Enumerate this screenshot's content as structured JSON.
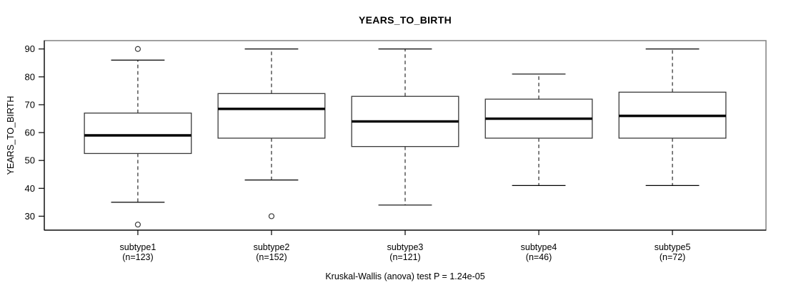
{
  "figure": {
    "title": "YEARS_TO_BIRTH",
    "ylabel": "YEARS_TO_BIRTH",
    "footnote": "Kruskal-Wallis (anova) test P = 1.24e-05"
  },
  "chart_data": {
    "type": "boxplot",
    "title": "YEARS_TO_BIRTH",
    "xlabel": "",
    "ylabel": "YEARS_TO_BIRTH",
    "footnote": "Kruskal-Wallis (anova) test P = 1.24e-05",
    "ylim": [
      25,
      93
    ],
    "yticks": [
      30,
      40,
      50,
      60,
      70,
      80,
      90
    ],
    "grid": false,
    "legend": "none",
    "categories": [
      "subtype1",
      "subtype2",
      "subtype3",
      "subtype4",
      "subtype5"
    ],
    "category_sublabels": [
      "(n=123)",
      "(n=152)",
      "(n=121)",
      "(n=46)",
      "(n=72)"
    ],
    "series": [
      {
        "name": "subtype1",
        "n": 123,
        "whisker_low": 35,
        "q1": 52.5,
        "median": 59,
        "q3": 67,
        "whisker_high": 86,
        "outliers": [
          90,
          27
        ]
      },
      {
        "name": "subtype2",
        "n": 152,
        "whisker_low": 43,
        "q1": 58,
        "median": 68.5,
        "q3": 74,
        "whisker_high": 90,
        "outliers": [
          30
        ]
      },
      {
        "name": "subtype3",
        "n": 121,
        "whisker_low": 34,
        "q1": 55,
        "median": 64,
        "q3": 73,
        "whisker_high": 90,
        "outliers": []
      },
      {
        "name": "subtype4",
        "n": 46,
        "whisker_low": 41,
        "q1": 58,
        "median": 65,
        "q3": 72,
        "whisker_high": 81,
        "outliers": []
      },
      {
        "name": "subtype5",
        "n": 72,
        "whisker_low": 41,
        "q1": 58,
        "median": 66,
        "q3": 74.5,
        "whisker_high": 90,
        "outliers": []
      }
    ],
    "colors": {
      "background": "#ffffff",
      "frame": "#818181",
      "axis": "#000000",
      "box_border": "#3a3a3a",
      "box_fill": "#ffffff",
      "median": "#000000",
      "text": "#000000"
    }
  }
}
